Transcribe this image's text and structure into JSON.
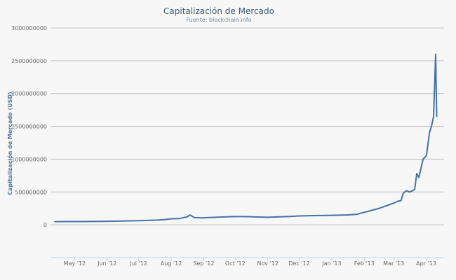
{
  "chart_data": {
    "type": "line",
    "title": "Capitalización de Mercado",
    "subtitle": "Fuente: blockchain.info",
    "xlabel": "",
    "ylabel": "Capitalización de Mercado (USD)",
    "ylim": [
      -500000000,
      3000000000
    ],
    "yticks": [
      0,
      500000000,
      1000000000,
      1500000000,
      2000000000,
      2500000000,
      3000000000
    ],
    "ytick_labels": [
      "0",
      "500000000",
      "1000000000",
      "1500000000",
      "2000000000",
      "2500000000",
      "3000000000"
    ],
    "xlim": [
      "2012-04-08",
      "2013-04-18"
    ],
    "xticks": [
      "2012-05-01",
      "2012-06-01",
      "2012-07-01",
      "2012-08-01",
      "2012-09-01",
      "2012-10-01",
      "2012-11-01",
      "2012-12-01",
      "2013-01-01",
      "2013-02-01",
      "2013-03-01",
      "2013-04-01"
    ],
    "xtick_labels": [
      "May '12",
      "Jun '12",
      "Jul '12",
      "Aug '12",
      "Sep '12",
      "Oct '12",
      "Nov '12",
      "Dec '12",
      "Jan '13",
      "Feb '13",
      "Mar '13",
      "Apr '13"
    ],
    "grid": true,
    "legend": "none",
    "line_color": "#4572a7",
    "series": [
      {
        "x": [
          "2012-04-12",
          "2012-04-26",
          "2012-05-10",
          "2012-05-24",
          "2012-06-07",
          "2012-06-21",
          "2012-07-05",
          "2012-07-19",
          "2012-07-26",
          "2012-08-02",
          "2012-08-09",
          "2012-08-13",
          "2012-08-16",
          "2012-08-19",
          "2012-08-23",
          "2012-08-30",
          "2012-09-06",
          "2012-09-13",
          "2012-09-20",
          "2012-10-01",
          "2012-10-10",
          "2012-10-20",
          "2012-11-01",
          "2012-11-10",
          "2012-11-20",
          "2012-12-01",
          "2012-12-15",
          "2013-01-01",
          "2013-01-15",
          "2013-01-25",
          "2013-02-01",
          "2013-02-08",
          "2013-02-15",
          "2013-02-22",
          "2013-03-01",
          "2013-03-05",
          "2013-03-08",
          "2013-03-10",
          "2013-03-13",
          "2013-03-16",
          "2013-03-19",
          "2013-03-21",
          "2013-03-23",
          "2013-03-25",
          "2013-03-27",
          "2013-03-29",
          "2013-04-01",
          "2013-04-02",
          "2013-04-04",
          "2013-04-06",
          "2013-04-08",
          "2013-04-10",
          "2013-04-11"
        ],
        "y": [
          48000000,
          50000000,
          50000000,
          52000000,
          55000000,
          60000000,
          65000000,
          72000000,
          80000000,
          92000000,
          95000000,
          110000000,
          120000000,
          150000000,
          110000000,
          105000000,
          110000000,
          115000000,
          120000000,
          125000000,
          125000000,
          120000000,
          115000000,
          120000000,
          125000000,
          135000000,
          140000000,
          145000000,
          150000000,
          160000000,
          190000000,
          220000000,
          250000000,
          290000000,
          330000000,
          360000000,
          370000000,
          480000000,
          520000000,
          500000000,
          520000000,
          540000000,
          780000000,
          720000000,
          860000000,
          1000000000,
          1050000000,
          1150000000,
          1400000000,
          1500000000,
          1650000000,
          2600000000,
          1650000000
        ]
      }
    ]
  }
}
